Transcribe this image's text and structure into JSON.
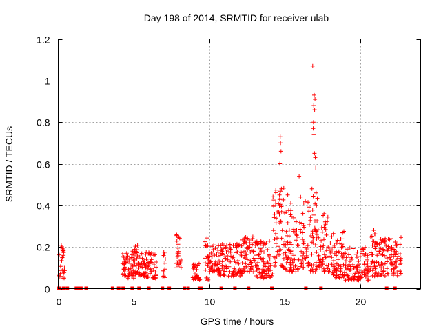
{
  "chart_data": {
    "type": "scatter",
    "title": "Day 198 of 2014, SRMTID for receiver ulab",
    "xlabel": "GPS time / hours",
    "ylabel": "SRMTID / TECUs",
    "xlim": [
      0,
      24
    ],
    "ylim": [
      0,
      1.2
    ],
    "xticks": [
      0,
      5,
      10,
      15,
      20
    ],
    "yticks": [
      0,
      0.2,
      0.4,
      0.6,
      0.8,
      1,
      1.2
    ],
    "xtick_labels": [
      "0",
      "5",
      "10",
      "15",
      "20"
    ],
    "ytick_labels": [
      "0",
      "0.2",
      "0.4",
      "0.6",
      "0.8",
      "1",
      "1.2"
    ],
    "grid": true,
    "marker": "+",
    "color": "#ff0000",
    "series": [
      {
        "name": "SRMTID",
        "segments": [
          {
            "x_start": 0.05,
            "x_end": 0.45,
            "y_min": 0.05,
            "y_max": 0.22
          },
          {
            "x_start": 4.25,
            "x_end": 4.6,
            "y_min": 0.06,
            "y_max": 0.17
          },
          {
            "x_start": 4.6,
            "x_end": 5.0,
            "y_min": 0.05,
            "y_max": 0.18
          },
          {
            "x_start": 5.0,
            "x_end": 5.7,
            "y_min": 0.06,
            "y_max": 0.21
          },
          {
            "x_start": 5.7,
            "x_end": 6.5,
            "y_min": 0.05,
            "y_max": 0.18
          },
          {
            "x_start": 6.9,
            "x_end": 7.1,
            "y_min": 0.05,
            "y_max": 0.19
          },
          {
            "x_start": 7.8,
            "x_end": 8.15,
            "y_min": 0.1,
            "y_max": 0.3
          },
          {
            "x_start": 8.9,
            "x_end": 9.4,
            "y_min": 0.04,
            "y_max": 0.12
          },
          {
            "x_start": 9.7,
            "x_end": 10.0,
            "y_min": 0.04,
            "y_max": 0.27
          },
          {
            "x_start": 10.0,
            "x_end": 10.6,
            "y_min": 0.08,
            "y_max": 0.22
          },
          {
            "x_start": 10.6,
            "x_end": 12.2,
            "y_min": 0.06,
            "y_max": 0.22
          },
          {
            "x_start": 12.2,
            "x_end": 13.0,
            "y_min": 0.08,
            "y_max": 0.25
          },
          {
            "x_start": 13.0,
            "x_end": 14.2,
            "y_min": 0.05,
            "y_max": 0.23
          },
          {
            "x_start": 14.2,
            "x_end": 15.0,
            "y_min": 0.1,
            "y_max": 0.5
          },
          {
            "x_start": 15.0,
            "x_end": 16.2,
            "y_min": 0.08,
            "y_max": 0.38
          },
          {
            "x_start": 16.2,
            "x_end": 17.2,
            "y_min": 0.08,
            "y_max": 0.45
          },
          {
            "x_start": 17.2,
            "x_end": 18.0,
            "y_min": 0.08,
            "y_max": 0.36
          },
          {
            "x_start": 18.0,
            "x_end": 19.0,
            "y_min": 0.05,
            "y_max": 0.28
          },
          {
            "x_start": 19.0,
            "x_end": 20.6,
            "y_min": 0.04,
            "y_max": 0.2
          },
          {
            "x_start": 20.6,
            "x_end": 21.6,
            "y_min": 0.06,
            "y_max": 0.28
          },
          {
            "x_start": 21.6,
            "x_end": 22.7,
            "y_min": 0.06,
            "y_max": 0.25
          }
        ],
        "peaks": [
          {
            "x": 14.7,
            "y": 0.73
          },
          {
            "x": 14.72,
            "y": 0.7
          },
          {
            "x": 14.75,
            "y": 0.66
          },
          {
            "x": 14.68,
            "y": 0.6
          },
          {
            "x": 14.78,
            "y": 0.48
          },
          {
            "x": 14.65,
            "y": 0.45
          },
          {
            "x": 15.2,
            "y": 0.45
          },
          {
            "x": 15.4,
            "y": 0.41
          },
          {
            "x": 15.95,
            "y": 0.54
          },
          {
            "x": 16.05,
            "y": 0.44
          },
          {
            "x": 16.85,
            "y": 1.07
          },
          {
            "x": 16.95,
            "y": 0.93
          },
          {
            "x": 17.0,
            "y": 0.91
          },
          {
            "x": 16.92,
            "y": 0.88
          },
          {
            "x": 16.98,
            "y": 0.86
          },
          {
            "x": 16.9,
            "y": 0.8
          },
          {
            "x": 16.88,
            "y": 0.77
          },
          {
            "x": 16.93,
            "y": 0.74
          },
          {
            "x": 16.97,
            "y": 0.65
          },
          {
            "x": 17.02,
            "y": 0.63
          },
          {
            "x": 17.05,
            "y": 0.58
          },
          {
            "x": 16.8,
            "y": 0.48
          },
          {
            "x": 17.08,
            "y": 0.46
          },
          {
            "x": 17.1,
            "y": 0.4
          },
          {
            "x": 17.6,
            "y": 0.36
          }
        ]
      }
    ],
    "zero_markers_x": [
      0.05,
      0.35,
      0.6,
      1.2,
      1.35,
      1.5,
      1.85,
      3.6,
      4.0,
      4.3,
      4.9,
      5.35,
      6.0,
      6.9,
      7.35,
      8.35,
      8.6,
      9.35,
      9.45,
      10.8,
      11.7,
      12.6,
      14.15,
      16.4,
      17.4,
      21.75,
      22.3
    ]
  }
}
